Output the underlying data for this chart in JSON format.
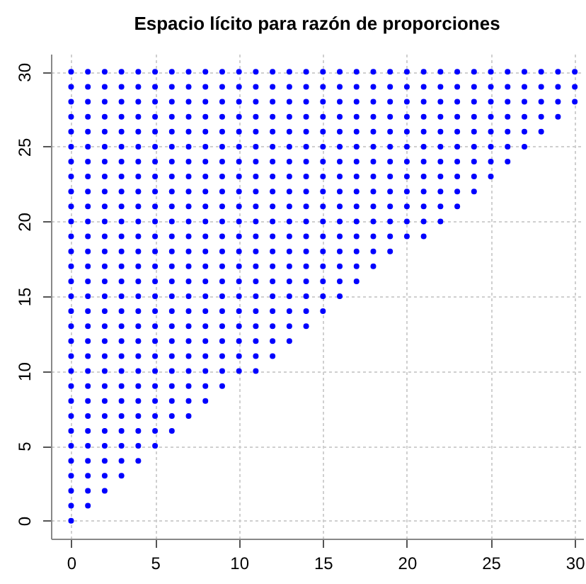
{
  "chart_data": {
    "type": "scatter",
    "title": "Espacio lícito para razón de proporciones",
    "marker": "circle",
    "grid": true,
    "legend": false,
    "xlim": [
      -1.2,
      30.5
    ],
    "ylim": [
      -1.2,
      31.2
    ],
    "xticks": [
      0,
      5,
      10,
      15,
      20,
      25,
      30
    ],
    "yticks": [
      0,
      5,
      10,
      15,
      20,
      25,
      30
    ],
    "series": [
      {
        "color": "#0000ff",
        "x": [
          0
        ],
        "values": [
          0
        ]
      },
      {
        "color": "#0000ff",
        "x": [
          0,
          1
        ],
        "values": [
          1,
          1
        ]
      },
      {
        "color": "#0000ff",
        "x": [
          0,
          1,
          2
        ],
        "values": [
          2,
          2,
          2
        ]
      },
      {
        "color": "#0000ff",
        "x": [
          0,
          1,
          2,
          3
        ],
        "values": [
          3,
          3,
          3,
          3
        ]
      },
      {
        "color": "#0000ff",
        "x": [
          0,
          1,
          2,
          3,
          4
        ],
        "values": [
          4,
          4,
          4,
          4,
          4
        ]
      },
      {
        "color": "#0000ff",
        "x": [
          0,
          1,
          2,
          3,
          4,
          5
        ],
        "values": [
          5,
          5,
          5,
          5,
          5,
          5
        ]
      },
      {
        "color": "#0000ff",
        "x": [
          0,
          1,
          2,
          3,
          4,
          5,
          6
        ],
        "values": [
          6,
          6,
          6,
          6,
          6,
          6,
          6
        ]
      },
      {
        "color": "#0000ff",
        "x": [
          0,
          1,
          2,
          3,
          4,
          5,
          6,
          7
        ],
        "values": [
          7,
          7,
          7,
          7,
          7,
          7,
          7,
          7
        ]
      },
      {
        "color": "#0000ff",
        "x": [
          0,
          1,
          2,
          3,
          4,
          5,
          6,
          7,
          8
        ],
        "values": [
          8,
          8,
          8,
          8,
          8,
          8,
          8,
          8,
          8
        ]
      },
      {
        "color": "#0000ff",
        "x": [
          0,
          1,
          2,
          3,
          4,
          5,
          6,
          7,
          8,
          9
        ],
        "values": [
          9,
          9,
          9,
          9,
          9,
          9,
          9,
          9,
          9,
          9
        ]
      },
      {
        "color": "#0000ff",
        "x": [
          0,
          1,
          2,
          3,
          4,
          5,
          6,
          7,
          8,
          9,
          10,
          11
        ],
        "values": [
          10,
          10,
          10,
          10,
          10,
          10,
          10,
          10,
          10,
          10,
          10,
          10
        ]
      },
      {
        "color": "#0000ff",
        "x": [
          0,
          1,
          2,
          3,
          4,
          5,
          6,
          7,
          8,
          9,
          10,
          11,
          12
        ],
        "values": [
          11,
          11,
          11,
          11,
          11,
          11,
          11,
          11,
          11,
          11,
          11,
          11,
          11
        ]
      },
      {
        "color": "#0000ff",
        "x": [
          0,
          1,
          2,
          3,
          4,
          5,
          6,
          7,
          8,
          9,
          10,
          11,
          12,
          13
        ],
        "values": [
          12,
          12,
          12,
          12,
          12,
          12,
          12,
          12,
          12,
          12,
          12,
          12,
          12,
          12
        ]
      },
      {
        "color": "#0000ff",
        "x": [
          0,
          1,
          2,
          3,
          4,
          5,
          6,
          7,
          8,
          9,
          10,
          11,
          12,
          13,
          14
        ],
        "values": [
          13,
          13,
          13,
          13,
          13,
          13,
          13,
          13,
          13,
          13,
          13,
          13,
          13,
          13,
          13
        ]
      },
      {
        "color": "#0000ff",
        "x": [
          0,
          1,
          2,
          3,
          4,
          5,
          6,
          7,
          8,
          9,
          10,
          11,
          12,
          13,
          14,
          15
        ],
        "values": [
          14,
          14,
          14,
          14,
          14,
          14,
          14,
          14,
          14,
          14,
          14,
          14,
          14,
          14,
          14,
          14
        ]
      },
      {
        "color": "#0000ff",
        "x": [
          0,
          1,
          2,
          3,
          4,
          5,
          6,
          7,
          8,
          9,
          10,
          11,
          12,
          13,
          14,
          15,
          16
        ],
        "values": [
          15,
          15,
          15,
          15,
          15,
          15,
          15,
          15,
          15,
          15,
          15,
          15,
          15,
          15,
          15,
          15,
          15
        ]
      },
      {
        "color": "#0000ff",
        "x": [
          0,
          1,
          2,
          3,
          4,
          5,
          6,
          7,
          8,
          9,
          10,
          11,
          12,
          13,
          14,
          15,
          16,
          17
        ],
        "values": [
          16,
          16,
          16,
          16,
          16,
          16,
          16,
          16,
          16,
          16,
          16,
          16,
          16,
          16,
          16,
          16,
          16,
          16
        ]
      },
      {
        "color": "#0000ff",
        "x": [
          0,
          1,
          2,
          3,
          4,
          5,
          6,
          7,
          8,
          9,
          10,
          11,
          12,
          13,
          14,
          15,
          16,
          17,
          18
        ],
        "values": [
          17,
          17,
          17,
          17,
          17,
          17,
          17,
          17,
          17,
          17,
          17,
          17,
          17,
          17,
          17,
          17,
          17,
          17,
          17
        ]
      },
      {
        "color": "#0000ff",
        "x": [
          0,
          1,
          2,
          3,
          4,
          5,
          6,
          7,
          8,
          9,
          10,
          11,
          12,
          13,
          14,
          15,
          16,
          17,
          18,
          19
        ],
        "values": [
          18,
          18,
          18,
          18,
          18,
          18,
          18,
          18,
          18,
          18,
          18,
          18,
          18,
          18,
          18,
          18,
          18,
          18,
          18,
          18
        ]
      },
      {
        "color": "#0000ff",
        "x": [
          0,
          1,
          2,
          3,
          4,
          5,
          6,
          7,
          8,
          9,
          10,
          11,
          12,
          13,
          14,
          15,
          16,
          17,
          18,
          19,
          20,
          21
        ],
        "values": [
          19,
          19,
          19,
          19,
          19,
          19,
          19,
          19,
          19,
          19,
          19,
          19,
          19,
          19,
          19,
          19,
          19,
          19,
          19,
          19,
          19,
          19
        ]
      },
      {
        "color": "#0000ff",
        "x": [
          0,
          1,
          2,
          3,
          4,
          5,
          6,
          7,
          8,
          9,
          10,
          11,
          12,
          13,
          14,
          15,
          16,
          17,
          18,
          19,
          20,
          21,
          22
        ],
        "values": [
          20,
          20,
          20,
          20,
          20,
          20,
          20,
          20,
          20,
          20,
          20,
          20,
          20,
          20,
          20,
          20,
          20,
          20,
          20,
          20,
          20,
          20,
          20
        ]
      },
      {
        "color": "#0000ff",
        "x": [
          0,
          1,
          2,
          3,
          4,
          5,
          6,
          7,
          8,
          9,
          10,
          11,
          12,
          13,
          14,
          15,
          16,
          17,
          18,
          19,
          20,
          21,
          22,
          23
        ],
        "values": [
          21,
          21,
          21,
          21,
          21,
          21,
          21,
          21,
          21,
          21,
          21,
          21,
          21,
          21,
          21,
          21,
          21,
          21,
          21,
          21,
          21,
          21,
          21,
          21
        ]
      },
      {
        "color": "#0000ff",
        "x": [
          0,
          1,
          2,
          3,
          4,
          5,
          6,
          7,
          8,
          9,
          10,
          11,
          12,
          13,
          14,
          15,
          16,
          17,
          18,
          19,
          20,
          21,
          22,
          23,
          24
        ],
        "values": [
          22,
          22,
          22,
          22,
          22,
          22,
          22,
          22,
          22,
          22,
          22,
          22,
          22,
          22,
          22,
          22,
          22,
          22,
          22,
          22,
          22,
          22,
          22,
          22,
          22
        ]
      },
      {
        "color": "#0000ff",
        "x": [
          0,
          1,
          2,
          3,
          4,
          5,
          6,
          7,
          8,
          9,
          10,
          11,
          12,
          13,
          14,
          15,
          16,
          17,
          18,
          19,
          20,
          21,
          22,
          23,
          24,
          25
        ],
        "values": [
          23,
          23,
          23,
          23,
          23,
          23,
          23,
          23,
          23,
          23,
          23,
          23,
          23,
          23,
          23,
          23,
          23,
          23,
          23,
          23,
          23,
          23,
          23,
          23,
          23,
          23
        ]
      },
      {
        "color": "#0000ff",
        "x": [
          0,
          1,
          2,
          3,
          4,
          5,
          6,
          7,
          8,
          9,
          10,
          11,
          12,
          13,
          14,
          15,
          16,
          17,
          18,
          19,
          20,
          21,
          22,
          23,
          24,
          25,
          26
        ],
        "values": [
          24,
          24,
          24,
          24,
          24,
          24,
          24,
          24,
          24,
          24,
          24,
          24,
          24,
          24,
          24,
          24,
          24,
          24,
          24,
          24,
          24,
          24,
          24,
          24,
          24,
          24,
          24
        ]
      },
      {
        "color": "#0000ff",
        "x": [
          0,
          1,
          2,
          3,
          4,
          5,
          6,
          7,
          8,
          9,
          10,
          11,
          12,
          13,
          14,
          15,
          16,
          17,
          18,
          19,
          20,
          21,
          22,
          23,
          24,
          25,
          26,
          27
        ],
        "values": [
          25,
          25,
          25,
          25,
          25,
          25,
          25,
          25,
          25,
          25,
          25,
          25,
          25,
          25,
          25,
          25,
          25,
          25,
          25,
          25,
          25,
          25,
          25,
          25,
          25,
          25,
          25,
          25
        ]
      },
      {
        "color": "#0000ff",
        "x": [
          0,
          1,
          2,
          3,
          4,
          5,
          6,
          7,
          8,
          9,
          10,
          11,
          12,
          13,
          14,
          15,
          16,
          17,
          18,
          19,
          20,
          21,
          22,
          23,
          24,
          25,
          26,
          27,
          28
        ],
        "values": [
          26,
          26,
          26,
          26,
          26,
          26,
          26,
          26,
          26,
          26,
          26,
          26,
          26,
          26,
          26,
          26,
          26,
          26,
          26,
          26,
          26,
          26,
          26,
          26,
          26,
          26,
          26,
          26,
          26
        ]
      },
      {
        "color": "#0000ff",
        "x": [
          0,
          1,
          2,
          3,
          4,
          5,
          6,
          7,
          8,
          9,
          10,
          11,
          12,
          13,
          14,
          15,
          16,
          17,
          18,
          19,
          20,
          21,
          22,
          23,
          24,
          25,
          26,
          27,
          28,
          29
        ],
        "values": [
          27,
          27,
          27,
          27,
          27,
          27,
          27,
          27,
          27,
          27,
          27,
          27,
          27,
          27,
          27,
          27,
          27,
          27,
          27,
          27,
          27,
          27,
          27,
          27,
          27,
          27,
          27,
          27,
          27,
          27
        ]
      },
      {
        "color": "#0000ff",
        "x": [
          0,
          1,
          2,
          3,
          4,
          5,
          6,
          7,
          8,
          9,
          10,
          11,
          12,
          13,
          14,
          15,
          16,
          17,
          18,
          19,
          20,
          21,
          22,
          23,
          24,
          25,
          26,
          27,
          28,
          29,
          30
        ],
        "values": [
          28,
          28,
          28,
          28,
          28,
          28,
          28,
          28,
          28,
          28,
          28,
          28,
          28,
          28,
          28,
          28,
          28,
          28,
          28,
          28,
          28,
          28,
          28,
          28,
          28,
          28,
          28,
          28,
          28,
          28,
          28
        ]
      },
      {
        "color": "#0000ff",
        "x": [
          0,
          1,
          2,
          3,
          4,
          5,
          6,
          7,
          8,
          9,
          10,
          11,
          12,
          13,
          14,
          15,
          16,
          17,
          18,
          19,
          20,
          21,
          22,
          23,
          24,
          25,
          26,
          27,
          28,
          29,
          30
        ],
        "values": [
          29,
          29,
          29,
          29,
          29,
          29,
          29,
          29,
          29,
          29,
          29,
          29,
          29,
          29,
          29,
          29,
          29,
          29,
          29,
          29,
          29,
          29,
          29,
          29,
          29,
          29,
          29,
          29,
          29,
          29,
          29
        ]
      },
      {
        "color": "#0000ff",
        "x": [
          0,
          1,
          2,
          3,
          4,
          5,
          6,
          7,
          8,
          9,
          10,
          11,
          12,
          13,
          14,
          15,
          16,
          17,
          18,
          19,
          20,
          21,
          22,
          23,
          24,
          25,
          26,
          27,
          28,
          29,
          30
        ],
        "values": [
          30,
          30,
          30,
          30,
          30,
          30,
          30,
          30,
          30,
          30,
          30,
          30,
          30,
          30,
          30,
          30,
          30,
          30,
          30,
          30,
          30,
          30,
          30,
          30,
          30,
          30,
          30,
          30,
          30,
          30,
          30
        ]
      }
    ]
  }
}
